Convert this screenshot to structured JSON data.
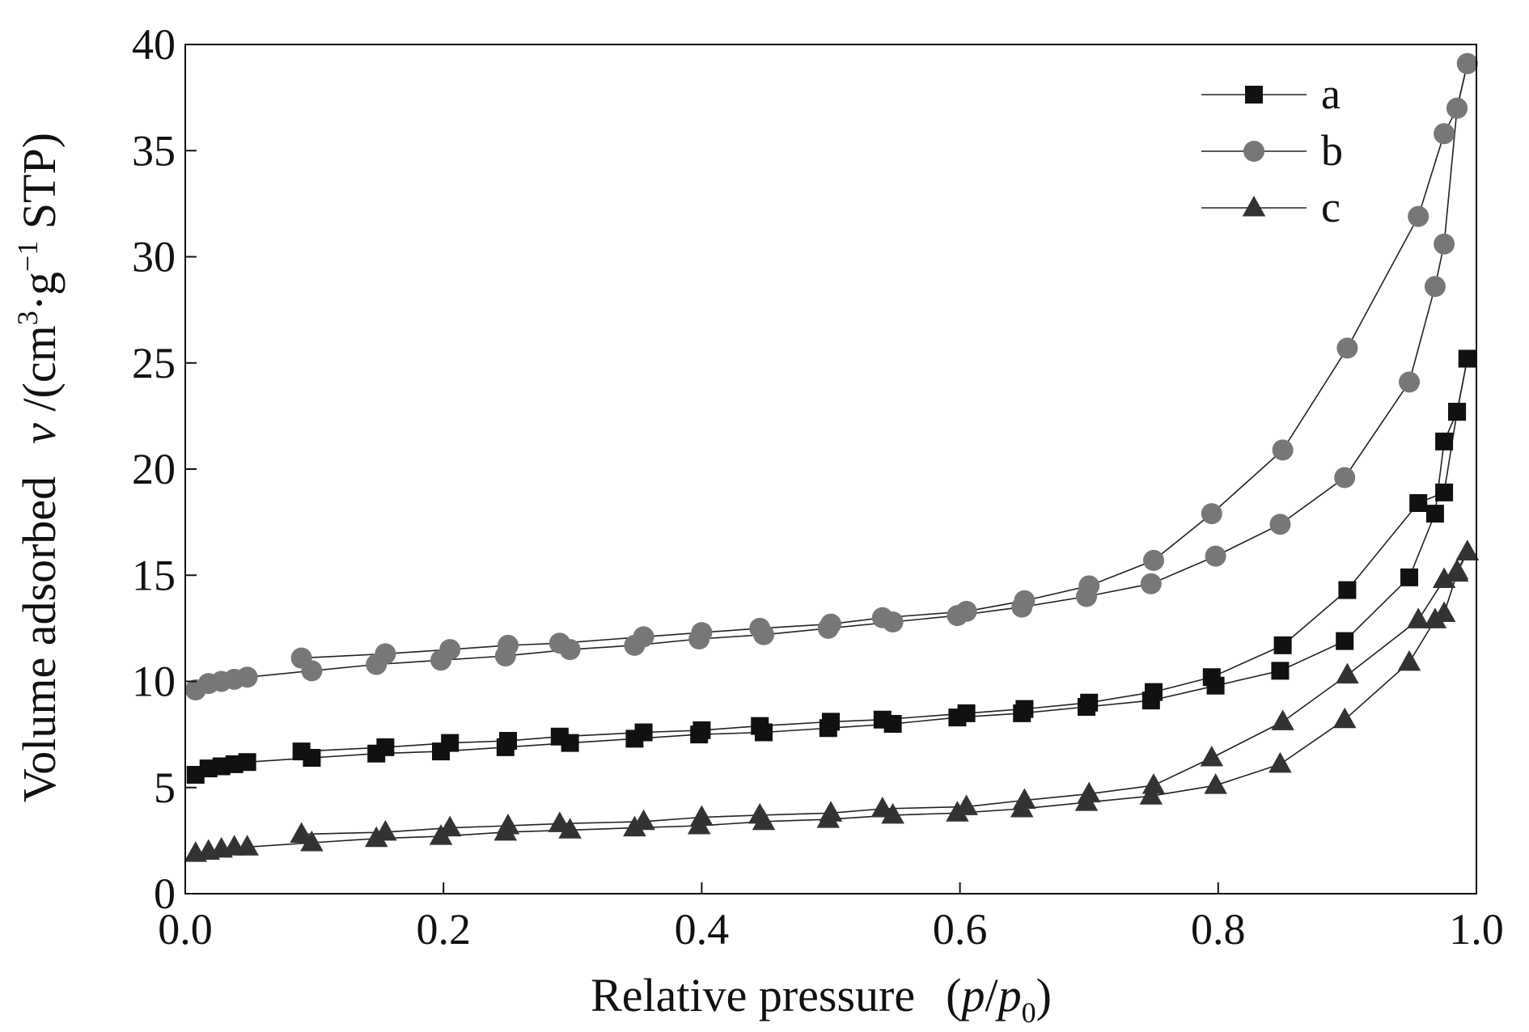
{
  "chart_data": {
    "type": "scatter",
    "title": "",
    "xlabel": {
      "main": "Relative pressure",
      "expr_open": "(",
      "p": "p",
      "slash": "/",
      "p0_base": "p",
      "p0_sub": "0",
      "expr_close": ")"
    },
    "ylabel": {
      "main": "Volume adsorbed",
      "v": "v",
      "unit_open": " /(cm",
      "sup3": "3",
      "mid": "·g",
      "supm1": "−1",
      "unit_close": " STP)"
    },
    "xlim": [
      0.0,
      1.0
    ],
    "ylim": [
      0,
      40
    ],
    "x_ticks": [
      "0.0",
      "0.2",
      "0.4",
      "0.6",
      "0.8",
      "1.0"
    ],
    "y_ticks": [
      "0",
      "5",
      "10",
      "15",
      "20",
      "25",
      "30",
      "35",
      "40"
    ],
    "grid": false,
    "legend_position": "top-right",
    "series": [
      {
        "name": "a",
        "marker": "square",
        "color": "#111111",
        "adsorption": {
          "x": [
            0.008,
            0.018,
            0.028,
            0.038,
            0.048,
            0.098,
            0.148,
            0.198,
            0.248,
            0.298,
            0.348,
            0.398,
            0.448,
            0.498,
            0.548,
            0.598,
            0.648,
            0.698,
            0.748,
            0.798,
            0.848,
            0.898,
            0.948,
            0.968,
            0.975,
            0.985,
            0.993
          ],
          "y": [
            5.6,
            5.9,
            6.0,
            6.1,
            6.2,
            6.4,
            6.6,
            6.7,
            6.9,
            7.1,
            7.3,
            7.5,
            7.6,
            7.8,
            8.0,
            8.3,
            8.5,
            8.8,
            9.1,
            9.8,
            10.5,
            11.9,
            14.9,
            17.9,
            21.3,
            22.7,
            25.2
          ]
        },
        "desorption": {
          "x": [
            0.993,
            0.985,
            0.975,
            0.955,
            0.9,
            0.85,
            0.795,
            0.75,
            0.7,
            0.65,
            0.605,
            0.54,
            0.5,
            0.445,
            0.4,
            0.355,
            0.29,
            0.25,
            0.205,
            0.155,
            0.09
          ],
          "y": [
            25.2,
            22.7,
            18.9,
            18.4,
            14.3,
            11.7,
            10.2,
            9.5,
            9.0,
            8.7,
            8.5,
            8.2,
            8.1,
            7.9,
            7.7,
            7.6,
            7.4,
            7.2,
            7.1,
            6.9,
            6.7
          ]
        }
      },
      {
        "name": "b",
        "marker": "circle",
        "color": "#777777",
        "adsorption": {
          "x": [
            0.008,
            0.018,
            0.028,
            0.038,
            0.048,
            0.098,
            0.148,
            0.198,
            0.248,
            0.298,
            0.348,
            0.398,
            0.448,
            0.498,
            0.548,
            0.598,
            0.648,
            0.698,
            0.748,
            0.798,
            0.848,
            0.898,
            0.948,
            0.968,
            0.975,
            0.985,
            0.993
          ],
          "y": [
            9.6,
            9.9,
            10.0,
            10.1,
            10.2,
            10.5,
            10.8,
            11.0,
            11.2,
            11.5,
            11.7,
            12.0,
            12.2,
            12.5,
            12.8,
            13.1,
            13.5,
            14.0,
            14.6,
            15.9,
            17.4,
            19.6,
            24.1,
            28.6,
            30.6,
            37.0,
            39.1
          ]
        },
        "desorption": {
          "x": [
            0.993,
            0.985,
            0.975,
            0.955,
            0.9,
            0.85,
            0.795,
            0.75,
            0.7,
            0.65,
            0.605,
            0.54,
            0.5,
            0.445,
            0.4,
            0.355,
            0.29,
            0.25,
            0.205,
            0.155,
            0.09
          ],
          "y": [
            39.1,
            37.0,
            35.8,
            31.9,
            25.7,
            20.9,
            17.9,
            15.7,
            14.5,
            13.8,
            13.3,
            13.0,
            12.7,
            12.5,
            12.3,
            12.1,
            11.8,
            11.7,
            11.5,
            11.3,
            11.1
          ]
        }
      },
      {
        "name": "c",
        "marker": "triangle",
        "color": "#333333",
        "adsorption": {
          "x": [
            0.008,
            0.018,
            0.028,
            0.038,
            0.048,
            0.098,
            0.148,
            0.198,
            0.248,
            0.298,
            0.348,
            0.398,
            0.448,
            0.498,
            0.548,
            0.598,
            0.648,
            0.698,
            0.748,
            0.798,
            0.848,
            0.898,
            0.948,
            0.968,
            0.975,
            0.985,
            0.993
          ],
          "y": [
            1.9,
            2.0,
            2.1,
            2.2,
            2.2,
            2.4,
            2.6,
            2.7,
            2.9,
            3.0,
            3.1,
            3.2,
            3.4,
            3.5,
            3.7,
            3.8,
            4.0,
            4.3,
            4.6,
            5.1,
            6.1,
            8.2,
            10.9,
            12.9,
            13.2,
            15.1,
            16.1
          ]
        },
        "desorption": {
          "x": [
            0.993,
            0.985,
            0.975,
            0.955,
            0.9,
            0.85,
            0.795,
            0.75,
            0.7,
            0.65,
            0.605,
            0.54,
            0.5,
            0.445,
            0.4,
            0.355,
            0.29,
            0.25,
            0.205,
            0.155,
            0.09
          ],
          "y": [
            16.1,
            15.2,
            14.8,
            12.9,
            10.3,
            8.1,
            6.4,
            5.1,
            4.7,
            4.4,
            4.1,
            4.0,
            3.8,
            3.7,
            3.6,
            3.4,
            3.3,
            3.2,
            3.1,
            2.9,
            2.8
          ]
        }
      }
    ]
  }
}
